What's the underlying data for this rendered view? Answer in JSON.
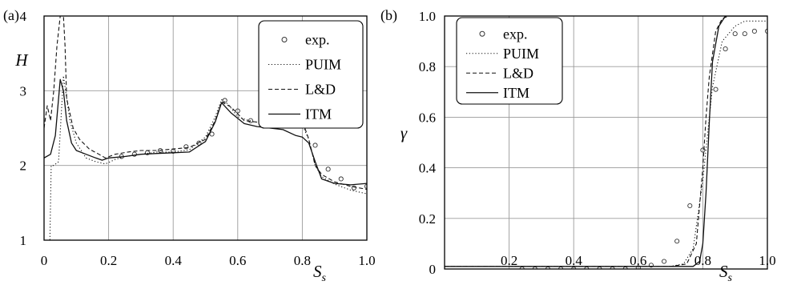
{
  "chart_data": [
    {
      "type": "line",
      "panel_label": "(a)",
      "xlabel": "S",
      "xlabel_sub": "s",
      "ylabel": "H",
      "xlim": [
        0,
        1.0
      ],
      "ylim": [
        1,
        4
      ],
      "xticks": [
        0,
        0.2,
        0.4,
        0.6,
        0.8,
        1.0
      ],
      "xtick_labels": [
        "0",
        "0.2",
        "0.4",
        "0.6",
        "0.8",
        "1.0"
      ],
      "yticks": [
        1,
        2,
        3,
        4
      ],
      "ytick_labels": [
        "1",
        "2",
        "3",
        "4"
      ],
      "grid": true,
      "legend_position": "top-right",
      "series": [
        {
          "name": "exp.",
          "style": "circles",
          "x": [
            0.24,
            0.28,
            0.32,
            0.36,
            0.4,
            0.44,
            0.48,
            0.52,
            0.56,
            0.6,
            0.64,
            0.68,
            0.72,
            0.76,
            0.8,
            0.84,
            0.88,
            0.92,
            0.96,
            1.0
          ],
          "y": [
            2.12,
            2.15,
            2.17,
            2.2,
            2.19,
            2.25,
            2.3,
            2.42,
            2.87,
            2.73,
            2.6,
            2.57,
            2.61,
            2.6,
            2.62,
            2.27,
            1.95,
            1.82,
            1.7,
            1.72
          ]
        },
        {
          "name": "PUIM",
          "style": "dotted",
          "x": [
            0,
            0.018,
            0.022,
            0.03,
            0.045,
            0.06,
            0.08,
            0.1,
            0.13,
            0.16,
            0.19,
            0.22,
            0.25,
            0.3,
            0.35,
            0.4,
            0.45,
            0.5,
            0.53,
            0.55,
            0.57,
            0.6,
            0.65,
            0.7,
            0.75,
            0.78,
            0.8,
            0.82,
            0.84,
            0.86,
            0.9,
            0.95,
            1.0
          ],
          "y": [
            1.0,
            1.0,
            2.0,
            2.0,
            2.05,
            3.2,
            2.6,
            2.3,
            2.1,
            2.05,
            2.02,
            2.08,
            2.12,
            2.15,
            2.18,
            2.18,
            2.21,
            2.38,
            2.65,
            2.88,
            2.82,
            2.65,
            2.58,
            2.58,
            2.56,
            2.57,
            2.54,
            2.35,
            2.0,
            1.85,
            1.75,
            1.67,
            1.62
          ]
        },
        {
          "name": "L&D",
          "style": "dashed",
          "x": [
            0,
            0.01,
            0.02,
            0.03,
            0.04,
            0.05,
            0.06,
            0.065,
            0.07,
            0.09,
            0.11,
            0.14,
            0.17,
            0.19,
            0.22,
            0.26,
            0.3,
            0.35,
            0.4,
            0.45,
            0.5,
            0.53,
            0.55,
            0.58,
            0.62,
            0.66,
            0.7,
            0.74,
            0.78,
            0.8,
            0.82,
            0.84,
            0.86,
            0.9,
            0.95,
            1.0
          ],
          "y": [
            2.5,
            2.8,
            2.6,
            3.0,
            3.6,
            4.0,
            4.0,
            3.6,
            2.9,
            2.5,
            2.35,
            2.22,
            2.15,
            2.1,
            2.15,
            2.18,
            2.2,
            2.2,
            2.22,
            2.24,
            2.35,
            2.6,
            2.85,
            2.78,
            2.6,
            2.58,
            2.57,
            2.56,
            2.58,
            2.6,
            2.35,
            2.0,
            1.88,
            1.78,
            1.72,
            1.68
          ]
        },
        {
          "name": "ITM",
          "style": "solid",
          "x": [
            0,
            0.02,
            0.035,
            0.05,
            0.06,
            0.07,
            0.085,
            0.1,
            0.13,
            0.16,
            0.18,
            0.2,
            0.25,
            0.3,
            0.35,
            0.4,
            0.45,
            0.5,
            0.53,
            0.55,
            0.58,
            0.62,
            0.66,
            0.7,
            0.74,
            0.78,
            0.8,
            0.82,
            0.84,
            0.86,
            0.9,
            0.95,
            1.0
          ],
          "y": [
            2.1,
            2.15,
            2.4,
            3.15,
            3.0,
            2.6,
            2.3,
            2.2,
            2.15,
            2.1,
            2.07,
            2.1,
            2.12,
            2.15,
            2.16,
            2.17,
            2.18,
            2.32,
            2.58,
            2.84,
            2.7,
            2.56,
            2.52,
            2.5,
            2.48,
            2.4,
            2.38,
            2.3,
            2.05,
            1.82,
            1.76,
            1.74,
            1.76
          ]
        }
      ]
    },
    {
      "type": "line",
      "panel_label": "(b)",
      "xlabel": "S",
      "xlabel_sub": "s",
      "ylabel": "γ",
      "xlim": [
        0,
        1.0
      ],
      "ylim": [
        0,
        1.0
      ],
      "xticks": [
        0.2,
        0.4,
        0.6,
        0.8,
        1.0
      ],
      "xtick_labels": [
        "0.2",
        "0.4",
        "0.6",
        "0.8",
        "1.0"
      ],
      "yticks": [
        0,
        0.2,
        0.4,
        0.6,
        0.8,
        1.0
      ],
      "ytick_labels": [
        "0",
        "0.2",
        "0.4",
        "0.6",
        "0.8",
        "1.0"
      ],
      "grid": true,
      "legend_position": "top-left",
      "series": [
        {
          "name": "exp.",
          "style": "circles",
          "x": [
            0.24,
            0.28,
            0.32,
            0.36,
            0.4,
            0.44,
            0.48,
            0.52,
            0.56,
            0.6,
            0.64,
            0.68,
            0.72,
            0.76,
            0.8,
            0.84,
            0.87,
            0.9,
            0.93,
            0.96,
            1.0
          ],
          "y": [
            0.0,
            0.0,
            0.0,
            0.0,
            0.0,
            0.0,
            0.0,
            0.0,
            0.0,
            0.005,
            0.015,
            0.03,
            0.11,
            0.25,
            0.47,
            0.71,
            0.87,
            0.93,
            0.93,
            0.94,
            0.94
          ]
        },
        {
          "name": "PUIM",
          "style": "dotted",
          "x": [
            0,
            0.6,
            0.7,
            0.74,
            0.77,
            0.8,
            0.83,
            0.86,
            0.9,
            0.93,
            1.0
          ],
          "y": [
            0.01,
            0.01,
            0.01,
            0.02,
            0.08,
            0.35,
            0.72,
            0.9,
            0.96,
            0.98,
            0.98
          ]
        },
        {
          "name": "L&D",
          "style": "dashed",
          "x": [
            0,
            0.7,
            0.75,
            0.78,
            0.8,
            0.81,
            0.82,
            0.84,
            0.86,
            0.88,
            1.0
          ],
          "y": [
            0.01,
            0.01,
            0.02,
            0.1,
            0.4,
            0.6,
            0.76,
            0.94,
            0.99,
            1.0,
            1.0
          ]
        },
        {
          "name": "ITM",
          "style": "solid",
          "x": [
            0,
            0.72,
            0.77,
            0.79,
            0.8,
            0.81,
            0.82,
            0.83,
            0.85,
            0.87,
            1.0
          ],
          "y": [
            0.01,
            0.01,
            0.01,
            0.03,
            0.1,
            0.3,
            0.58,
            0.82,
            0.96,
            1.0,
            1.0
          ]
        }
      ]
    }
  ]
}
